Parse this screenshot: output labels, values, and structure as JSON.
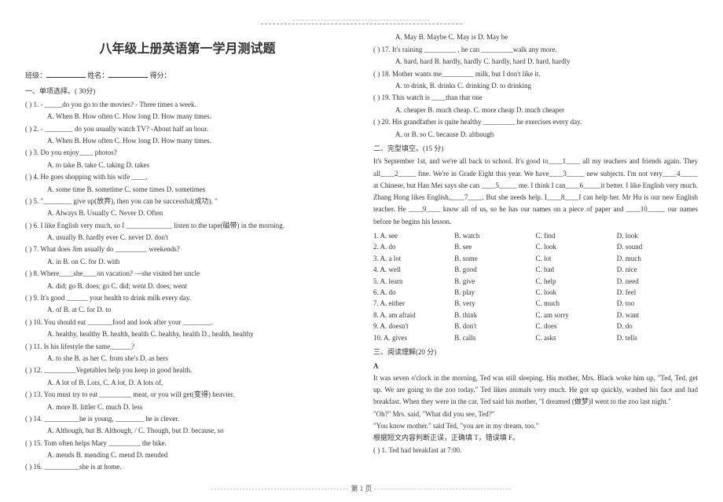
{
  "dashline": "--------------------------------------------",
  "title": "八年级上册英语第一学月测试题",
  "meta": {
    "class_label": "班级：",
    "name_label": "姓名：",
    "score_label": "得分："
  },
  "sec1": "一、单项选择。( 30分)",
  "q1": "( ) 1. - _____do you go to the movies?    - Three times a week.",
  "q1o": "A. When        B. How often        C. How long        D. How many times.",
  "q2": "( ) 2. - ________ do you usually watch TV?    -About half an hour.",
  "q2o": "A. When     B. How often    C. How long      D. How many times.",
  "q3": "( ) 3. Do you enjoy____ photos?",
  "q3o": "A. to take     B. take     C. taking      D. takes",
  "q4": "( ) 4. He goes shopping with his wife ____.",
  "q4o": "A. some time     B. sometime     C. some times     D. sometimes",
  "q5": "( ) 5. \"________ give up(放弃), then you can be successful(成功). \"",
  "q5o": "A. Always     B. Usually     C. Never     D. Often",
  "q6": "( ) 6. I like English very much, so I _____________ listen to the tape(磁带) in the morning.",
  "q6o": "A. usually       B. hardly ever       C. never      D. don't",
  "q7": "( ) 7. What does Jim usually do _________ weekends?",
  "q7o": "A. in          B. on          C. for          D. with",
  "q8": "( ) 8. Where____she____on vacation?   —she visited her uncle",
  "q8o": "A. did; go     B. does; go     C. did; went     D. does; went",
  "q9": "( ) 9. It's good ______ your health to drink milk every day.",
  "q9o": "A. of          B. at          C. for          D. to",
  "q10": "( ) 10. You should eat _______food and look after your ________.",
  "q10o": "A. healthy, healthy    B. health, health   C. healthy, health   D., health, healthy",
  "q11": "( ) 11. Is his lifestyle the same______?",
  "q11o": "A. to she     B. as her     C. from she's    D. as hers",
  "q12": "( ) 12. _________Vegetables help you keep in good health.",
  "q12o": "A. A lot of    B. Lots,    C. A  lot,      D. A  lots of,",
  "q13": "( ) 13. You must try to eat _________ meat, or you will get(变得) heavier.",
  "q13o": "A. more    B. littler    C. much      D. less",
  "q14": "( ) 14. __________he is young, ________ he is clever.",
  "q14o": "A. Although, but    B. Although,  /    C. Though, but    D. because, so",
  "q15": "( ) 15. Tom often helps Mary _________ the bike.",
  "q15o": "A. mends     B. mending   C. mend    D. mended",
  "q16": "( ) 16. __________she is at home.",
  "q16o": "A. May     B. Maybe    C. May is      D. May be",
  "q17": "( ) 17. It's raining _________ , he can _________walk any more.",
  "q17o": "A. hard, hard    B. hardly, hardly   C. hardly, hard   D. hard, hardly",
  "q18": "( ) 18. Mother wants me_________ milk, but I don't like it.",
  "q18o": "A. to drink,     B. drinks     C. drinking    D. to drinking",
  "q19": "( ) 19. This watch is ____than that one",
  "q19o": "A. cheaper    B. much cheap.  C. more cheap    D. much cheaper",
  "q20": "( ) 20. His grandfather is quite healthy _________ he exercises every day.",
  "q20o": "A. or        B. so     C. because    D. although",
  "sec2": "二、完型填空。(15 分)",
  "cloze": "It's September 1st, and we're all back to school. It's good to____1____ all my teachers and friends again. They all____2_____ fine.  We're in Grade Eight this year. We have____3_____ new subjects. I'm not very____4_____ at Chinese, but Han Mei says she can ____5_____ me. I think I can____6_____it better.  I like English very much. Zhang Hong likes English,____7____. But she needs help. I____8____I can help her.  Mr Hu is our new English teacher. He ____9____ know all of us, so he has our names on a piece of paper and ____10_____ our names before he begins his lesson.",
  "cloze_opts": [
    [
      "1. A. see",
      "B. watch",
      "C. find",
      "D. look"
    ],
    [
      "2. A. do",
      "B. see",
      "C. look",
      "D. sound"
    ],
    [
      "3. A. a lot",
      "B. some",
      "C. lot",
      "D. much"
    ],
    [
      "4. A. well",
      "B. good",
      "C. bad",
      "D. nice"
    ],
    [
      "5. A. learn",
      "B. give",
      "C. help",
      "D. need"
    ],
    [
      "6. A. do",
      "B. play",
      "C. look",
      "D. feel"
    ],
    [
      "7. A. either",
      "B. very",
      "C. much",
      "D. too"
    ],
    [
      "8. A. am afraid",
      "B. think",
      "C. am sorry",
      "D. want"
    ],
    [
      "9. A. doesn't",
      "B. don't",
      "C. does",
      "D. do"
    ],
    [
      "10. A. gives",
      "B. calls",
      "C. asks",
      "D. tells"
    ]
  ],
  "sec3": "三、阅读理解(20 分)",
  "A": "A",
  "passage": "It was seven o'clock in the morning, Ted was still sleeping. His mother, Mrs. Black woke him up, \"Ted, Ted, get up. We are going to the zoo today.\" Ted likes animals very much. He got up quickly, washed his face and had breakfast. When they were in the car, Ted said his mother, \"I dreamed (做梦)I went to the zoo last night.\"",
  "p2": "\"Oh?\" Mrs. said, \"What did you see, Ted?\"",
  "p3": "\"You know mother.\" said Ted, \"you are in my dream, too.\"",
  "note": "根据短文内容判断正误，正确填 T，错误填 F。",
  "r1": "(   ) 1. Ted had breakfast at 7:00.",
  "footer": {
    "page": "第 1 页"
  }
}
